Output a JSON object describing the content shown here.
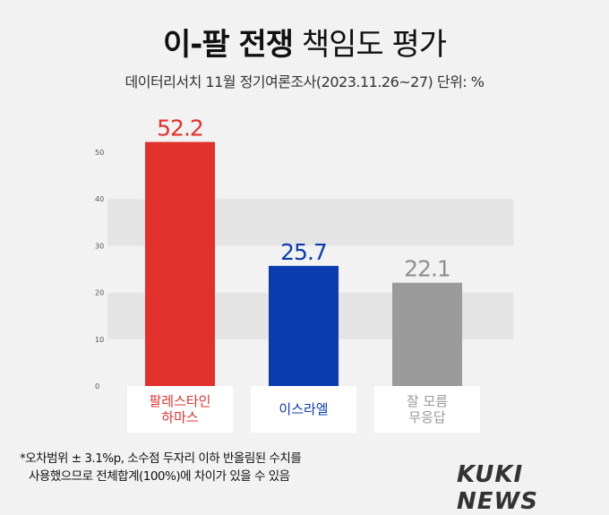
{
  "title_strong": "이-팔 전쟁",
  "title_light": "책임도 평가",
  "subtitle": "데이터리서치 11월 정기여론조사(2023.11.26~27) 단위: %",
  "footnote_line1": "*오차범위 ± 3.1%p, 소수점 두자리 이하 반올림된 수치를",
  "footnote_line2": "사용했으므로 전체합계(100%)에 차이가 있을 수 있음",
  "logo": "KUKI NEWS",
  "chart_data": {
    "type": "bar",
    "categories": [
      [
        "팔레스타인",
        "하마스"
      ],
      [
        "이스라엘"
      ],
      [
        "잘 모름",
        "무응답"
      ]
    ],
    "values": [
      52.2,
      25.7,
      22.1
    ],
    "value_labels": [
      "52.2",
      "25.7",
      "22.1"
    ],
    "colors": [
      "#e2312d",
      "#0a3cb0",
      "#9b9b9b"
    ],
    "ylim": [
      0,
      50
    ],
    "yticks": [
      0,
      10,
      20,
      30,
      40,
      50
    ],
    "grid": "alternating bands"
  }
}
